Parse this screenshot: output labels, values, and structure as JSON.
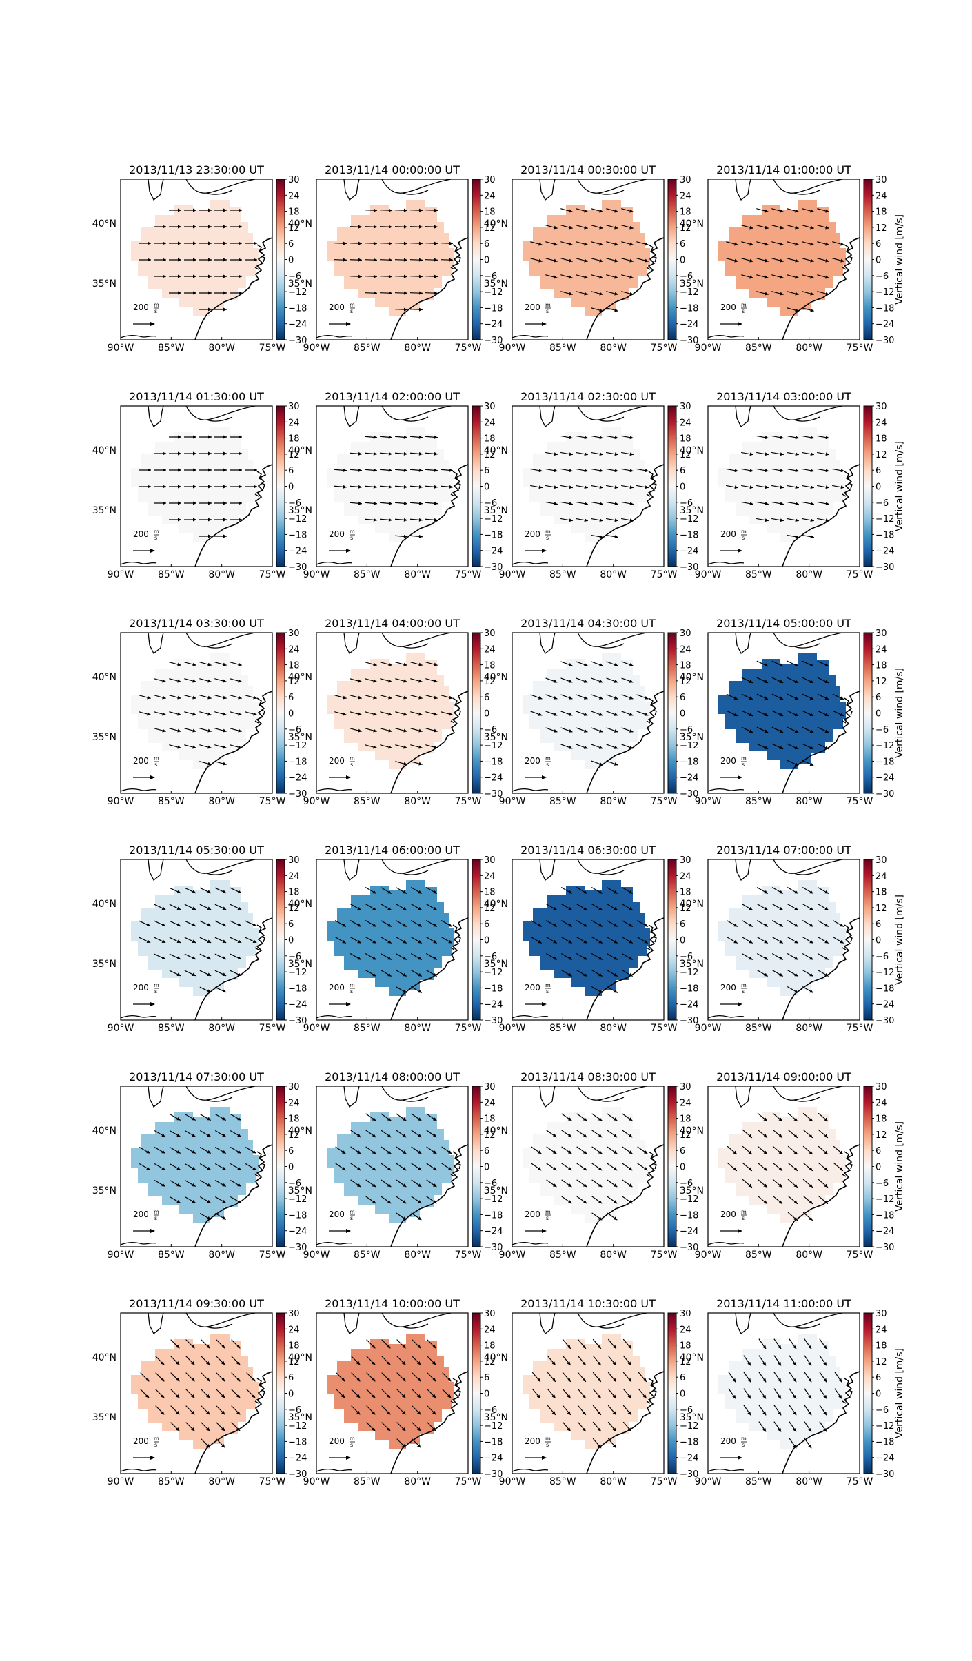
{
  "figure": {
    "colorbar": {
      "label": "Vertical wind [m/s]",
      "ticks": [
        "30",
        "24",
        "18",
        "12",
        "6",
        "0",
        "−6",
        "−12",
        "−18",
        "−24",
        "−30"
      ],
      "range": [
        -30,
        30
      ],
      "colormap": "RdBu_r",
      "colors": [
        "#67001f",
        "#b2182b",
        "#d6604d",
        "#f4a582",
        "#fddbc7",
        "#f7f7f7",
        "#d1e5f0",
        "#92c5de",
        "#4393c3",
        "#2166ac",
        "#053061"
      ]
    },
    "map": {
      "x_ticks": [
        "90°W",
        "85°W",
        "80°W",
        "75°W"
      ],
      "y_ticks": [
        "40°N",
        "35°N"
      ],
      "scale_label": "200",
      "scale_unit_num": "m",
      "scale_unit_den": "s"
    }
  },
  "chart_data": {
    "type": "heatmap",
    "variable": "Vertical wind [m/s]",
    "vmin": -30,
    "vmax": 30,
    "lon_range": [
      -90,
      -75
    ],
    "lat_range": [
      31,
      44
    ],
    "panels": [
      {
        "title": "2013/11/13 23:30:00 UT",
        "value": 4,
        "arrow_angle": 0
      },
      {
        "title": "2013/11/14 00:00:00 UT",
        "value": 7,
        "arrow_angle": 2
      },
      {
        "title": "2013/11/14 00:30:00 UT",
        "value": 10,
        "arrow_angle": 15
      },
      {
        "title": "2013/11/14 01:00:00 UT",
        "value": 12,
        "arrow_angle": 15
      },
      {
        "title": "2013/11/14 01:30:00 UT",
        "value": 0,
        "arrow_angle": 0
      },
      {
        "title": "2013/11/14 02:00:00 UT",
        "value": 0,
        "arrow_angle": 5
      },
      {
        "title": "2013/11/14 02:30:00 UT",
        "value": 0,
        "arrow_angle": 10
      },
      {
        "title": "2013/11/14 03:00:00 UT",
        "value": 0,
        "arrow_angle": 10
      },
      {
        "title": "2013/11/14 03:30:00 UT",
        "value": 0,
        "arrow_angle": 15
      },
      {
        "title": "2013/11/14 04:00:00 UT",
        "value": 4,
        "arrow_angle": 15
      },
      {
        "title": "2013/11/14 04:30:00 UT",
        "value": -1,
        "arrow_angle": 20
      },
      {
        "title": "2013/11/14 05:00:00 UT",
        "value": -25,
        "arrow_angle": 25
      },
      {
        "title": "2013/11/14 05:30:00 UT",
        "value": -5,
        "arrow_angle": 25
      },
      {
        "title": "2013/11/14 06:00:00 UT",
        "value": -18,
        "arrow_angle": 30
      },
      {
        "title": "2013/11/14 06:30:00 UT",
        "value": -25,
        "arrow_angle": 30
      },
      {
        "title": "2013/11/14 07:00:00 UT",
        "value": -3,
        "arrow_angle": 30
      },
      {
        "title": "2013/11/14 07:30:00 UT",
        "value": -12,
        "arrow_angle": 30
      },
      {
        "title": "2013/11/14 08:00:00 UT",
        "value": -12,
        "arrow_angle": 35
      },
      {
        "title": "2013/11/14 08:30:00 UT",
        "value": 0,
        "arrow_angle": 35
      },
      {
        "title": "2013/11/14 09:00:00 UT",
        "value": 2,
        "arrow_angle": 40
      },
      {
        "title": "2013/11/14 09:30:00 UT",
        "value": 8,
        "arrow_angle": 45
      },
      {
        "title": "2013/11/14 10:00:00 UT",
        "value": 14,
        "arrow_angle": 45
      },
      {
        "title": "2013/11/14 10:30:00 UT",
        "value": 5,
        "arrow_angle": 50
      },
      {
        "title": "2013/11/14 11:00:00 UT",
        "value": -1,
        "arrow_angle": 55
      }
    ]
  }
}
